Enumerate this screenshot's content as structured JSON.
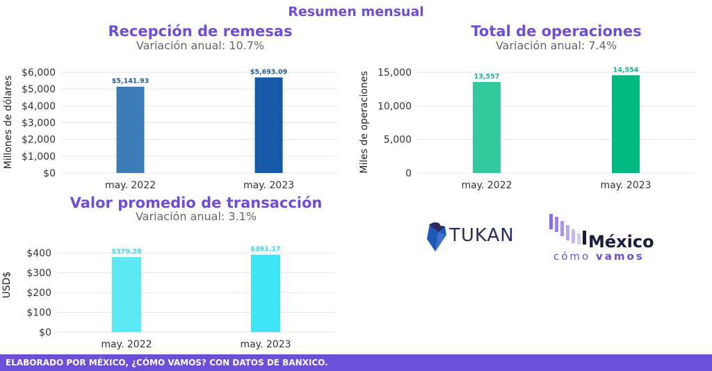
{
  "header": {
    "title": "Resumen mensual"
  },
  "charts": [
    {
      "title": "Recepción de remesas",
      "subtitle": "Variación anual: 10.7%"
    },
    {
      "title": "Total de operaciones",
      "subtitle": "Variación anual: 7.4%"
    },
    {
      "title": "Valor promedio de transacción",
      "subtitle": "Variación anual: 3.1%"
    }
  ],
  "chart_data": [
    {
      "type": "bar",
      "title": "Recepción de remesas",
      "subtitle": "Variación anual: 10.7%",
      "categories": [
        "may. 2022",
        "may. 2023"
      ],
      "values": [
        5141.93,
        5693.09
      ],
      "value_labels": [
        "$5,141.93",
        "$5,693.09"
      ],
      "ylabel": "Millones de dólares",
      "ylim": [
        0,
        6000
      ],
      "yticks": [
        0,
        1000,
        2000,
        3000,
        4000,
        5000,
        6000
      ],
      "ytick_labels": [
        "$0",
        "$1,000",
        "$2,000",
        "$3,000",
        "$4,000",
        "$5,000",
        "$6,000"
      ],
      "colors": [
        "#3d7ab8",
        "#1459a6"
      ],
      "label_color": "#2a5d9a",
      "grid": true
    },
    {
      "type": "bar",
      "title": "Total de operaciones",
      "subtitle": "Variación anual: 7.4%",
      "categories": [
        "may. 2022",
        "may. 2023"
      ],
      "values": [
        13557,
        14554
      ],
      "value_labels": [
        "13,557",
        "14,554"
      ],
      "ylabel": "Miles de operaciones",
      "ylim": [
        0,
        15000
      ],
      "yticks": [
        0,
        5000,
        10000,
        15000
      ],
      "ytick_labels": [
        "0",
        "5,000",
        "10,000",
        "15,000"
      ],
      "colors": [
        "#34c89d",
        "#00b881"
      ],
      "label_color": "#1fb38a",
      "grid": true
    },
    {
      "type": "bar",
      "title": "Valor promedio de transacción",
      "subtitle": "Variación anual: 3.1%",
      "categories": [
        "may. 2022",
        "may. 2023"
      ],
      "values": [
        379.28,
        391.17
      ],
      "value_labels": [
        "$379.28",
        "$391.17"
      ],
      "ylabel": "USD$",
      "ylim": [
        0,
        400
      ],
      "yticks": [
        0,
        100,
        200,
        300,
        400
      ],
      "ytick_labels": [
        "$0",
        "$100",
        "$200",
        "$300",
        "$400"
      ],
      "colors": [
        "#5ce8f5",
        "#3ee6f8"
      ],
      "label_color": "#3dd8ea",
      "grid": true
    }
  ],
  "logos": {
    "tukan": "TUKAN",
    "mcv_top": "México",
    "mcv_bottom_a": "cómo",
    "mcv_bottom_b": "vamos"
  },
  "footer": {
    "text": "ELABORADO POR MÉXICO, ¿CÓMO VAMOS? CON DATOS DE BANXICO."
  }
}
